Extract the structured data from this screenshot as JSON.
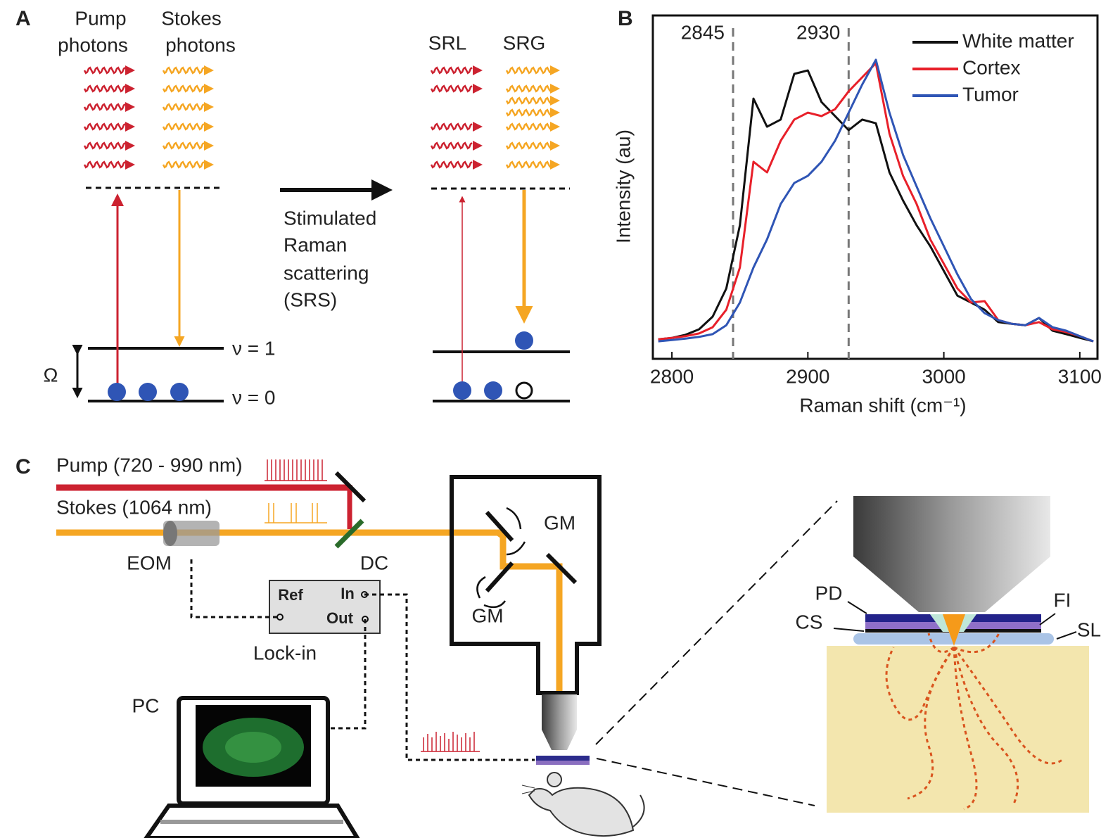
{
  "panel_a": {
    "label": "A",
    "pump": [
      "Pump",
      "photons"
    ],
    "stokes": [
      "Stokes",
      "photons"
    ],
    "process": [
      "Stimulated",
      "Raman",
      "scattering",
      "(SRS)"
    ],
    "srl": "SRL",
    "srg": "SRG",
    "level_1": "ν = 1",
    "level_0": "ν = 0",
    "omega": "Ω"
  },
  "chart_data": {
    "type": "line",
    "panel_label": "B",
    "xlabel": "Raman shift (cm⁻¹)",
    "ylabel": "Intensity (au)",
    "x": [
      2790,
      2800,
      2810,
      2820,
      2830,
      2840,
      2850,
      2860,
      2870,
      2880,
      2890,
      2900,
      2910,
      2920,
      2930,
      2940,
      2950,
      2960,
      2970,
      2980,
      2990,
      3000,
      3010,
      3020,
      3030,
      3040,
      3050,
      3060,
      3070,
      3080,
      3090,
      3100,
      3110
    ],
    "xlim": [
      2786,
      3113
    ],
    "xticks": [
      2800,
      2900,
      3000,
      3100
    ],
    "ylim": [
      0,
      100
    ],
    "vlines": [
      2845,
      2930
    ],
    "legend": "upper right",
    "series": [
      {
        "name": "White matter",
        "color": "#111111",
        "values": [
          5.7,
          6.1,
          7.0,
          8.6,
          12.3,
          20.5,
          38.9,
          75.8,
          67.6,
          69.7,
          83.0,
          84.0,
          74.8,
          70.7,
          66.6,
          69.7,
          68.6,
          54.3,
          46.1,
          38.9,
          32.8,
          25.6,
          18.4,
          16.4,
          14.3,
          10.7,
          10.2,
          9.8,
          11.9,
          8.2,
          7.2,
          6.1,
          5.1
        ]
      },
      {
        "name": "Cortex",
        "color": "#e8202a",
        "values": [
          5.7,
          6.1,
          6.6,
          7.4,
          9.2,
          14.3,
          26.6,
          57.4,
          54.3,
          63.5,
          69.7,
          71.7,
          70.7,
          72.7,
          77.9,
          82.0,
          86.1,
          65.6,
          53.3,
          45.1,
          34.8,
          27.7,
          20.5,
          16.4,
          16.8,
          11.3,
          10.2,
          9.8,
          10.7,
          8.6,
          7.8,
          6.6,
          5.1
        ]
      },
      {
        "name": "Tumor",
        "color": "#2f55b5",
        "values": [
          5.1,
          5.5,
          5.9,
          6.4,
          7.2,
          9.8,
          16.4,
          26.6,
          34.8,
          45.1,
          51.2,
          53.3,
          57.4,
          63.5,
          71.7,
          79.9,
          87.1,
          71.7,
          59.4,
          50.2,
          41.0,
          32.8,
          24.6,
          17.4,
          13.3,
          11.3,
          10.2,
          9.8,
          11.9,
          9.2,
          8.2,
          6.6,
          5.1
        ]
      }
    ]
  },
  "panel_c": {
    "label": "C",
    "pump": "Pump (720 - 990 nm)",
    "stokes": "Stokes (1064 nm)",
    "eom": "EOM",
    "dc": "DC",
    "gm_1": "GM",
    "gm_2": "GM",
    "ref": "Ref",
    "in": "In",
    "out": "Out",
    "lockin": "Lock-in",
    "pc": "PC",
    "pd": "PD",
    "fi": "FI",
    "cs": "CS",
    "sl": "SL"
  }
}
